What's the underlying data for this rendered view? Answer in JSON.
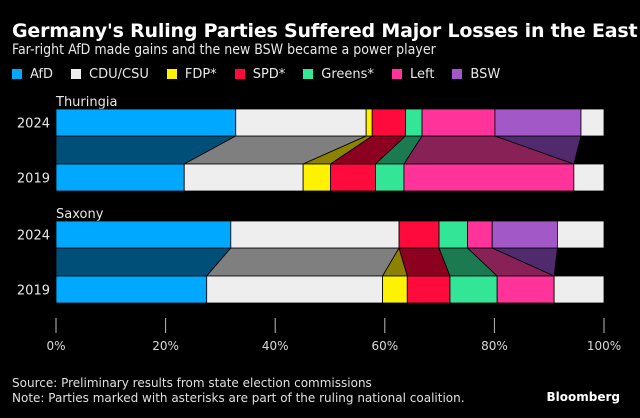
{
  "header": {
    "title": "Germany's Ruling Parties Suffered Major Losses in the East",
    "subtitle": "Far-right AfD made gains and the new BSW became a power player"
  },
  "footer": {
    "source": "Source: Preliminary results from state election commissions",
    "note": "Note: Parties marked with asterisks are part of the ruling national coalition.",
    "brand": "Bloomberg"
  },
  "chart_data": {
    "type": "bar",
    "orientation": "horizontal-stacked-100",
    "title": "Germany's Ruling Parties Suffered Major Losses in the East",
    "subtitle": "Far-right AfD made gains and the new BSW became a power player",
    "xlabel": "",
    "ylabel": "",
    "xlim": [
      0,
      100
    ],
    "x_ticks": [
      "0%",
      "20%",
      "40%",
      "60%",
      "80%",
      "100%"
    ],
    "x_tick_values": [
      0,
      20,
      40,
      60,
      80,
      100
    ],
    "legend_position": "top-left",
    "parties": [
      {
        "name": "AfD",
        "label": "AfD",
        "color": "#00a8ff",
        "link_color": "#004f78"
      },
      {
        "name": "CDU/CSU",
        "label": "CDU/CSU",
        "color": "#eeeeee",
        "link_color": "#7f7f7f"
      },
      {
        "name": "FDP",
        "label": "FDP*",
        "color": "#fff200",
        "link_color": "#8a8200"
      },
      {
        "name": "SPD",
        "label": "SPD*",
        "color": "#ff0a3c",
        "link_color": "#8c0020"
      },
      {
        "name": "Greens",
        "label": "Greens*",
        "color": "#33e596",
        "link_color": "#1b7a4f"
      },
      {
        "name": "Left",
        "label": "Left",
        "color": "#ff3399",
        "link_color": "#882256"
      },
      {
        "name": "BSW",
        "label": "BSW",
        "color": "#a358c8",
        "link_color": "#502a6c"
      },
      {
        "name": "Other",
        "label": "",
        "color": "#eeeeee",
        "link_color": "#000000"
      }
    ],
    "groups": [
      {
        "state": "Thuringia",
        "rows": [
          {
            "year": "2024",
            "values": [
              32.8,
              23.8,
              1.1,
              6.1,
              3.0,
              13.3,
              15.7,
              4.2
            ]
          },
          {
            "year": "2019",
            "values": [
              23.4,
              21.7,
              5.0,
              8.2,
              5.2,
              31.0,
              0.0,
              5.5
            ]
          }
        ]
      },
      {
        "state": "Saxony",
        "rows": [
          {
            "year": "2024",
            "values": [
              31.9,
              30.7,
              0.0,
              7.3,
              5.2,
              4.5,
              11.9,
              8.5
            ]
          },
          {
            "year": "2019",
            "values": [
              27.5,
              32.1,
              4.5,
              7.8,
              8.6,
              10.4,
              0.0,
              9.1
            ]
          }
        ]
      }
    ]
  }
}
